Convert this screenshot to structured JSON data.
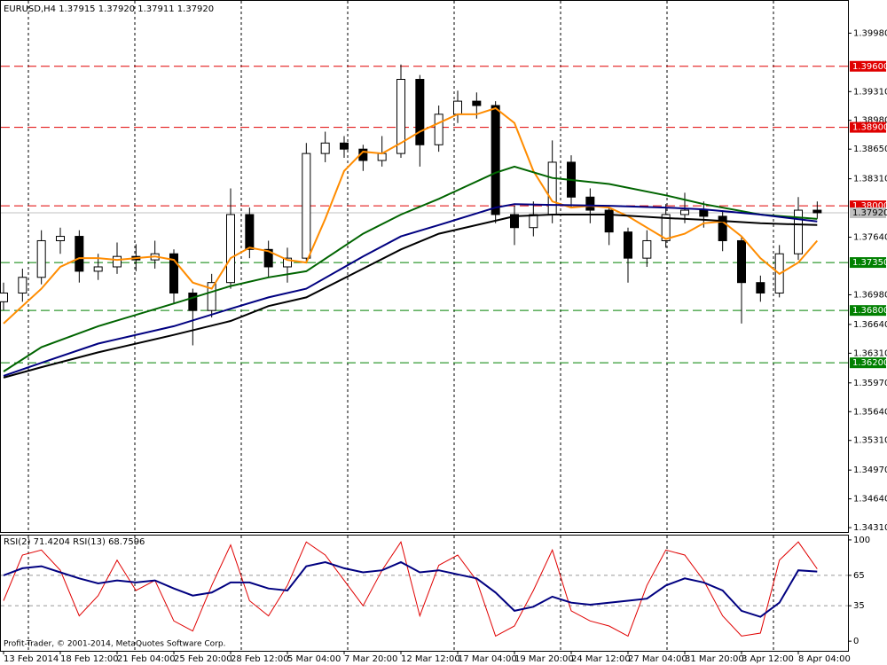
{
  "chart_data": [
    {
      "type": "candlestick",
      "title": "EURUSD,H4  1.37915 1.37920 1.37911 1.37920",
      "ylim": [
        1.3426,
        1.4036
      ],
      "yticks": [
        {
          "value": 1.3998,
          "label": "1.39980"
        },
        {
          "value": 1.3931,
          "label": "1.39310"
        },
        {
          "value": 1.3898,
          "label": "1.38980"
        },
        {
          "value": 1.3865,
          "label": "1.38650"
        },
        {
          "value": 1.3831,
          "label": "1.38310"
        },
        {
          "value": 1.3764,
          "label": "1.37640"
        },
        {
          "value": 1.3698,
          "label": "1.36980"
        },
        {
          "value": 1.3664,
          "label": "1.36640"
        },
        {
          "value": 1.3631,
          "label": "1.36310"
        },
        {
          "value": 1.3597,
          "label": "1.35970"
        },
        {
          "value": 1.3564,
          "label": "1.35640"
        },
        {
          "value": 1.3531,
          "label": "1.35310"
        },
        {
          "value": 1.3497,
          "label": "1.34970"
        },
        {
          "value": 1.3464,
          "label": "1.34640"
        },
        {
          "value": 1.3431,
          "label": "1.34310"
        }
      ],
      "open": [
        1.369,
        1.37,
        1.3718,
        1.376,
        1.3765,
        1.3725,
        1.373,
        1.3742,
        1.3738,
        1.3745,
        1.37,
        1.368,
        1.3712,
        1.379,
        1.375,
        1.373,
        1.374,
        1.386,
        1.3872,
        1.3865,
        1.3852,
        1.386,
        1.3945,
        1.387,
        1.3905,
        1.392,
        1.3915,
        1.379,
        1.3775,
        1.379,
        1.385,
        1.381,
        1.3795,
        1.377,
        1.374,
        1.376,
        1.379,
        1.3795,
        1.3788,
        1.376,
        1.3712,
        1.37,
        1.3745,
        1.3795
      ],
      "high": [
        1.3712,
        1.3728,
        1.3772,
        1.3775,
        1.3772,
        1.3745,
        1.3758,
        1.3756,
        1.376,
        1.375,
        1.3705,
        1.3722,
        1.382,
        1.3798,
        1.376,
        1.3752,
        1.3872,
        1.3885,
        1.388,
        1.387,
        1.388,
        1.3962,
        1.395,
        1.3915,
        1.3932,
        1.393,
        1.392,
        1.38,
        1.3805,
        1.3875,
        1.3858,
        1.382,
        1.38,
        1.3775,
        1.3772,
        1.3802,
        1.3815,
        1.3805,
        1.3795,
        1.3765,
        1.372,
        1.3755,
        1.381,
        1.3805
      ],
      "low": [
        1.368,
        1.369,
        1.371,
        1.3745,
        1.3712,
        1.3715,
        1.3722,
        1.3725,
        1.3728,
        1.3688,
        1.364,
        1.3672,
        1.3705,
        1.374,
        1.3718,
        1.3712,
        1.3735,
        1.385,
        1.3855,
        1.384,
        1.3845,
        1.3855,
        1.3845,
        1.3862,
        1.3895,
        1.39,
        1.378,
        1.3755,
        1.3765,
        1.378,
        1.3798,
        1.378,
        1.3755,
        1.3712,
        1.373,
        1.3752,
        1.378,
        1.3775,
        1.3748,
        1.3665,
        1.369,
        1.3695,
        1.3738,
        1.3785
      ],
      "close": [
        1.37,
        1.3718,
        1.376,
        1.3765,
        1.3725,
        1.373,
        1.3742,
        1.3738,
        1.3745,
        1.37,
        1.368,
        1.3712,
        1.379,
        1.375,
        1.373,
        1.374,
        1.386,
        1.3872,
        1.3865,
        1.3852,
        1.386,
        1.3945,
        1.387,
        1.3905,
        1.392,
        1.3915,
        1.379,
        1.3775,
        1.379,
        1.385,
        1.381,
        1.3795,
        1.377,
        1.374,
        1.376,
        1.379,
        1.3795,
        1.3788,
        1.376,
        1.3712,
        1.37,
        1.3745,
        1.3795,
        1.3792
      ],
      "series": [
        {
          "color": "#ff8c00",
          "x": [
            0,
            1,
            2,
            3,
            4,
            5,
            6,
            7,
            8,
            9,
            10,
            11,
            12,
            13,
            14,
            15,
            16,
            17,
            18,
            19,
            20,
            21,
            22,
            23,
            24,
            25,
            26,
            27,
            28,
            29,
            30,
            31,
            32,
            33,
            34,
            35,
            36,
            37,
            38,
            39,
            40,
            41,
            42,
            43
          ],
          "values": [
            1.3665,
            1.3685,
            1.3705,
            1.373,
            1.374,
            1.374,
            1.3738,
            1.374,
            1.3742,
            1.3738,
            1.3712,
            1.3705,
            1.374,
            1.3752,
            1.3748,
            1.3738,
            1.3735,
            1.3785,
            1.384,
            1.3862,
            1.386,
            1.3872,
            1.3885,
            1.3895,
            1.3905,
            1.3905,
            1.3912,
            1.3895,
            1.384,
            1.3805,
            1.3798,
            1.38,
            1.3798,
            1.3788,
            1.3775,
            1.3762,
            1.3768,
            1.378,
            1.3782,
            1.3765,
            1.374,
            1.3722,
            1.3735,
            1.376
          ]
        },
        {
          "color": "#006400",
          "x": [
            0,
            2,
            5,
            9,
            12,
            14,
            16,
            19,
            21,
            23,
            26,
            27,
            29,
            32,
            35,
            37,
            40,
            43
          ],
          "values": [
            1.361,
            1.3638,
            1.3662,
            1.3688,
            1.3708,
            1.3718,
            1.3725,
            1.3768,
            1.379,
            1.3808,
            1.3838,
            1.3845,
            1.3832,
            1.3825,
            1.3812,
            1.3802,
            1.379,
            1.3785
          ]
        },
        {
          "color": "#000080",
          "x": [
            0,
            2,
            5,
            9,
            12,
            14,
            16,
            19,
            21,
            23,
            26,
            27,
            29,
            32,
            35,
            37,
            40,
            43
          ],
          "values": [
            1.3605,
            1.362,
            1.3642,
            1.3662,
            1.3682,
            1.3695,
            1.3705,
            1.3742,
            1.3765,
            1.3778,
            1.3798,
            1.3802,
            1.3801,
            1.38,
            1.3798,
            1.3796,
            1.379,
            1.3782
          ]
        },
        {
          "color": "#000000",
          "x": [
            0,
            2,
            5,
            9,
            12,
            14,
            16,
            19,
            21,
            23,
            26,
            27,
            29,
            32,
            35,
            37,
            40,
            43
          ],
          "values": [
            1.3603,
            1.3615,
            1.3632,
            1.3652,
            1.3668,
            1.3685,
            1.3695,
            1.3728,
            1.375,
            1.3768,
            1.3783,
            1.3788,
            1.379,
            1.379,
            1.3786,
            1.3784,
            1.378,
            1.3778
          ]
        }
      ],
      "levels": [
        {
          "value": 1.396,
          "label": "1.39600",
          "color": "#e00000"
        },
        {
          "value": 1.389,
          "label": "1.38900",
          "color": "#e00000"
        },
        {
          "value": 1.38,
          "label": "1.38000",
          "color": "#e00000"
        },
        {
          "value": 1.3735,
          "label": "1.37350",
          "color": "#008000"
        },
        {
          "value": 1.368,
          "label": "1.36800",
          "color": "#008000"
        },
        {
          "value": 1.362,
          "label": "1.36200",
          "color": "#008000"
        }
      ],
      "price_marker": {
        "value": 1.3792,
        "label": "1.37920",
        "color": "#c0c0c0"
      }
    },
    {
      "type": "line",
      "title": "RSI(2) 71.4204  RSI(13) 68.7596",
      "ylim": [
        -9.5,
        104.3
      ],
      "yticks": [
        100,
        65,
        35,
        0
      ],
      "xticks": [
        {
          "value": 0,
          "label": "13 Feb 2014"
        },
        {
          "value": 3,
          "label": "18 Feb 12:00"
        },
        {
          "value": 6,
          "label": "21 Feb 04:00"
        },
        {
          "value": 9,
          "label": "25 Feb 20:00"
        },
        {
          "value": 12,
          "label": "28 Feb 12:00"
        },
        {
          "value": 15,
          "label": "5 Mar 04:00"
        },
        {
          "value": 18,
          "label": "7 Mar 20:00"
        },
        {
          "value": 21,
          "label": "12 Mar 12:00"
        },
        {
          "value": 24,
          "label": "17 Mar 04:00"
        },
        {
          "value": 27,
          "label": "19 Mar 20:00"
        },
        {
          "value": 30,
          "label": "24 Mar 12:00"
        },
        {
          "value": 33,
          "label": "27 Mar 04:00"
        },
        {
          "value": 36,
          "label": "31 Mar 20:00"
        },
        {
          "value": 39,
          "label": "3 Apr 12:00"
        },
        {
          "value": 42,
          "label": "8 Apr 04:00"
        }
      ],
      "series": [
        {
          "color": "#e00000",
          "values": [
            40,
            85,
            90,
            70,
            25,
            45,
            80,
            50,
            60,
            20,
            10,
            55,
            95,
            40,
            25,
            55,
            98,
            85,
            60,
            35,
            70,
            98,
            25,
            75,
            85,
            60,
            5,
            15,
            50,
            90,
            30,
            20,
            15,
            5,
            55,
            90,
            85,
            60,
            25,
            5,
            8,
            80,
            98,
            71.42
          ]
        },
        {
          "color": "#000080",
          "values": [
            65,
            72,
            74,
            68,
            62,
            57,
            60,
            58,
            60,
            52,
            45,
            48,
            58,
            58,
            52,
            50,
            74,
            78,
            72,
            68,
            70,
            78,
            68,
            70,
            66,
            62,
            48,
            30,
            34,
            44,
            38,
            36,
            38,
            40,
            42,
            55,
            62,
            58,
            50,
            30,
            24,
            38,
            70,
            68.76
          ]
        }
      ],
      "footer": "Profit-Trader, © 2001-2014, MetaQuotes Software Corp."
    }
  ]
}
